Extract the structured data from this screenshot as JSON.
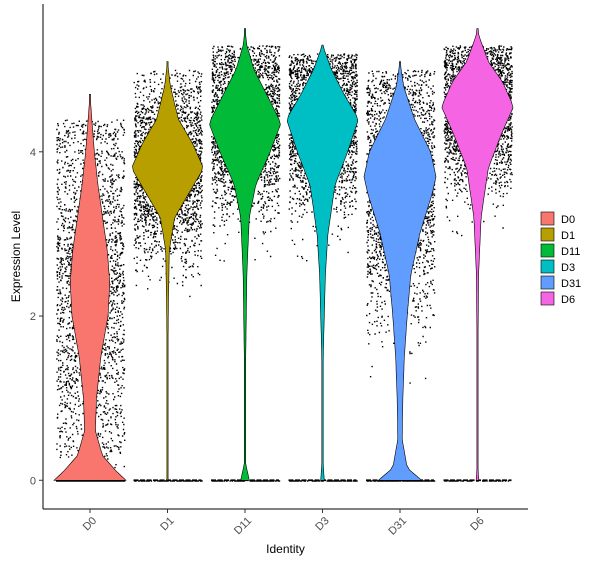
{
  "chart_data": {
    "type": "violin",
    "xlabel": "Identity",
    "ylabel": "Expression Level",
    "ylim": [
      -0.35,
      5.8
    ],
    "yticks": [
      0,
      2,
      4
    ],
    "categories": [
      "D0",
      "D1",
      "D11",
      "D3",
      "D31",
      "D6"
    ],
    "legend": {
      "position": "right",
      "entries": [
        "D0",
        "D1",
        "D11",
        "D3",
        "D31",
        "D6"
      ]
    },
    "colors": {
      "D0": "#F8766D",
      "D1": "#B79F00",
      "D11": "#00BA38",
      "D3": "#00BFC4",
      "D31": "#619CFF",
      "D6": "#F564E3"
    },
    "series": [
      {
        "name": "D0",
        "max": 4.7,
        "zero_fraction": 0.15,
        "mode": 2.4,
        "spread": 1.0,
        "jitter_max": 4.4,
        "profile": [
          [
            0,
            1.0
          ],
          [
            0.1,
            0.75
          ],
          [
            0.3,
            0.35
          ],
          [
            0.6,
            0.15
          ],
          [
            1.0,
            0.18
          ],
          [
            1.5,
            0.3
          ],
          [
            2.0,
            0.5
          ],
          [
            2.4,
            0.55
          ],
          [
            2.8,
            0.48
          ],
          [
            3.2,
            0.35
          ],
          [
            3.6,
            0.22
          ],
          [
            4.0,
            0.12
          ],
          [
            4.4,
            0.05
          ],
          [
            4.7,
            0.0
          ]
        ]
      },
      {
        "name": "D1",
        "max": 5.1,
        "zero_fraction": 0.03,
        "mode": 3.8,
        "spread": 0.55,
        "jitter_max": 5.0,
        "profile": [
          [
            0,
            0.01
          ],
          [
            1.0,
            0.01
          ],
          [
            2.0,
            0.02
          ],
          [
            2.8,
            0.05
          ],
          [
            3.2,
            0.2
          ],
          [
            3.5,
            0.6
          ],
          [
            3.8,
            1.0
          ],
          [
            4.1,
            0.7
          ],
          [
            4.4,
            0.3
          ],
          [
            4.8,
            0.08
          ],
          [
            5.1,
            0.0
          ]
        ]
      },
      {
        "name": "D11",
        "max": 5.5,
        "zero_fraction": 0.03,
        "mode": 4.35,
        "spread": 0.55,
        "jitter_max": 5.3,
        "profile": [
          [
            0,
            0.12
          ],
          [
            0.2,
            0.02
          ],
          [
            1.5,
            0.02
          ],
          [
            2.5,
            0.05
          ],
          [
            3.2,
            0.12
          ],
          [
            3.6,
            0.3
          ],
          [
            4.0,
            0.7
          ],
          [
            4.35,
            1.0
          ],
          [
            4.7,
            0.6
          ],
          [
            5.0,
            0.25
          ],
          [
            5.3,
            0.05
          ],
          [
            5.5,
            0.0
          ]
        ]
      },
      {
        "name": "D3",
        "max": 5.3,
        "zero_fraction": 0.03,
        "mode": 4.4,
        "spread": 0.55,
        "jitter_max": 5.2,
        "profile": [
          [
            0,
            0.05
          ],
          [
            0.2,
            0.02
          ],
          [
            1.5,
            0.02
          ],
          [
            2.5,
            0.08
          ],
          [
            3.0,
            0.15
          ],
          [
            3.6,
            0.35
          ],
          [
            4.0,
            0.7
          ],
          [
            4.4,
            1.0
          ],
          [
            4.7,
            0.6
          ],
          [
            5.0,
            0.25
          ],
          [
            5.3,
            0.0
          ]
        ]
      },
      {
        "name": "D31",
        "max": 5.1,
        "zero_fraction": 0.05,
        "mode": 3.6,
        "spread": 0.8,
        "jitter_max": 5.0,
        "profile": [
          [
            0,
            0.6
          ],
          [
            0.15,
            0.2
          ],
          [
            0.5,
            0.06
          ],
          [
            1.0,
            0.08
          ],
          [
            1.5,
            0.12
          ],
          [
            2.0,
            0.2
          ],
          [
            2.5,
            0.3
          ],
          [
            3.0,
            0.55
          ],
          [
            3.5,
            0.9
          ],
          [
            3.7,
            1.0
          ],
          [
            4.0,
            0.85
          ],
          [
            4.4,
            0.4
          ],
          [
            4.8,
            0.1
          ],
          [
            5.1,
            0.0
          ]
        ]
      },
      {
        "name": "D6",
        "max": 5.5,
        "zero_fraction": 0.02,
        "mode": 4.55,
        "spread": 0.5,
        "jitter_max": 5.3,
        "profile": [
          [
            0,
            0.04
          ],
          [
            0.15,
            0.01
          ],
          [
            1.5,
            0.01
          ],
          [
            2.5,
            0.03
          ],
          [
            3.2,
            0.1
          ],
          [
            3.8,
            0.3
          ],
          [
            4.2,
            0.65
          ],
          [
            4.55,
            1.0
          ],
          [
            4.85,
            0.7
          ],
          [
            5.1,
            0.3
          ],
          [
            5.4,
            0.05
          ],
          [
            5.5,
            0.0
          ]
        ]
      }
    ]
  }
}
